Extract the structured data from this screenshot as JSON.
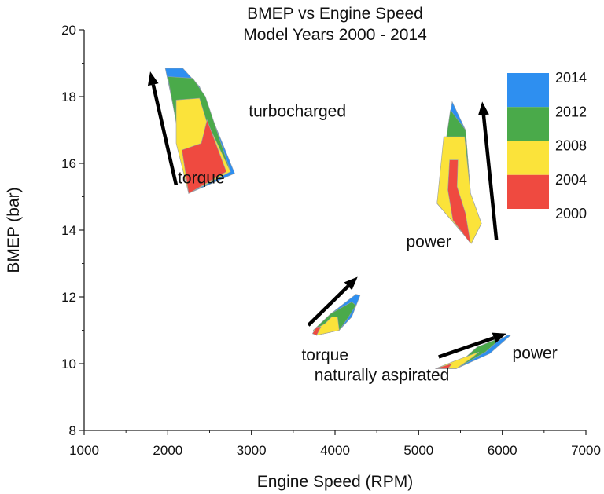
{
  "chart_data": {
    "type": "scatter",
    "title": "BMEP vs Engine Speed",
    "subtitle": "Model Years 2000 - 2014",
    "xlabel": "Engine Speed (RPM)",
    "ylabel": "BMEP (bar)",
    "xlim": [
      1000,
      7000
    ],
    "ylim": [
      8,
      20
    ],
    "xticks": [
      1000,
      2000,
      3000,
      4000,
      5000,
      6000,
      7000
    ],
    "yticks": [
      8,
      10,
      12,
      14,
      16,
      18,
      20
    ],
    "colors": {
      "2014": "#2e8ff0",
      "2012": "#4aaa4a",
      "2008": "#fbe33a",
      "2004": "#ef4a40",
      "2000": "#ef4a40"
    },
    "legend": {
      "placement": "top-right",
      "entries": [
        {
          "label": "2014",
          "color": "#2e8ff0"
        },
        {
          "label": "2012",
          "color": "#4aaa4a"
        },
        {
          "label": "2008",
          "color": "#fbe33a"
        },
        {
          "label": "2004",
          "color": "#ef4a40"
        },
        {
          "label": "2000",
          "color": "#ef4a40"
        }
      ]
    },
    "regions": [
      {
        "name": "turbocharged-torque",
        "layers": [
          {
            "year": "2014",
            "points": [
              [
                1970,
                18.85
              ],
              [
                2180,
                18.85
              ],
              [
                2380,
                18.3
              ],
              [
                2800,
                15.7
              ],
              [
                2250,
                15.1
              ],
              [
                2100,
                17.3
              ]
            ]
          },
          {
            "year": "2012",
            "points": [
              [
                2000,
                18.6
              ],
              [
                2300,
                18.55
              ],
              [
                2450,
                18.0
              ],
              [
                2750,
                15.75
              ],
              [
                2250,
                15.1
              ],
              [
                2080,
                17.5
              ]
            ]
          },
          {
            "year": "2008",
            "points": [
              [
                2100,
                17.9
              ],
              [
                2380,
                17.95
              ],
              [
                2460,
                17.3
              ],
              [
                2750,
                15.75
              ],
              [
                2250,
                15.1
              ],
              [
                2100,
                16.6
              ]
            ]
          },
          {
            "year": "2004",
            "points": [
              [
                2170,
                16.4
              ],
              [
                2400,
                16.6
              ],
              [
                2470,
                17.3
              ],
              [
                2700,
                15.75
              ],
              [
                2250,
                15.1
              ]
            ]
          }
        ]
      },
      {
        "name": "turbocharged-power",
        "layers": [
          {
            "year": "2014",
            "points": [
              [
                5400,
                17.85
              ],
              [
                5560,
                17.0
              ],
              [
                5620,
                15.1
              ],
              [
                5750,
                14.2
              ],
              [
                5630,
                13.6
              ],
              [
                5220,
                14.8
              ]
            ]
          },
          {
            "year": "2012",
            "points": [
              [
                5380,
                17.6
              ],
              [
                5560,
                17.0
              ],
              [
                5620,
                15.1
              ],
              [
                5750,
                14.2
              ],
              [
                5630,
                13.6
              ],
              [
                5220,
                14.8
              ]
            ]
          },
          {
            "year": "2008",
            "points": [
              [
                5300,
                16.8
              ],
              [
                5550,
                16.8
              ],
              [
                5620,
                15.1
              ],
              [
                5750,
                14.2
              ],
              [
                5630,
                13.6
              ],
              [
                5220,
                14.8
              ]
            ]
          },
          {
            "year": "2004",
            "points": [
              [
                5370,
                16.1
              ],
              [
                5470,
                16.1
              ],
              [
                5460,
                15.3
              ],
              [
                5560,
                14.5
              ],
              [
                5620,
                13.6
              ],
              [
                5410,
                14.3
              ],
              [
                5350,
                15.2
              ]
            ]
          }
        ]
      },
      {
        "name": "natural-torque",
        "layers": [
          {
            "year": "2014",
            "points": [
              [
                4250,
                12.08
              ],
              [
                4300,
                12.05
              ],
              [
                4200,
                11.4
              ],
              [
                4050,
                11.0
              ],
              [
                3780,
                10.85
              ],
              [
                3740,
                11.0
              ],
              [
                3950,
                11.5
              ]
            ]
          },
          {
            "year": "2012",
            "points": [
              [
                4200,
                11.85
              ],
              [
                4250,
                11.75
              ],
              [
                4150,
                11.35
              ],
              [
                4050,
                11.0
              ],
              [
                3780,
                10.85
              ],
              [
                3740,
                11.0
              ],
              [
                3950,
                11.5
              ]
            ]
          },
          {
            "year": "2008",
            "points": [
              [
                3960,
                11.4
              ],
              [
                4030,
                11.4
              ],
              [
                4050,
                11.0
              ],
              [
                3780,
                10.85
              ],
              [
                3740,
                11.0
              ],
              [
                3880,
                11.2
              ]
            ]
          },
          {
            "year": "2004",
            "points": [
              [
                3780,
                11.1
              ],
              [
                3830,
                11.1
              ],
              [
                3780,
                10.85
              ],
              [
                3730,
                10.9
              ]
            ]
          }
        ]
      },
      {
        "name": "natural-power",
        "layers": [
          {
            "year": "2014",
            "points": [
              [
                6100,
                10.85
              ],
              [
                6060,
                10.85
              ],
              [
                5700,
                10.3
              ],
              [
                5200,
                9.85
              ],
              [
                5450,
                9.85
              ],
              [
                5850,
                10.3
              ]
            ]
          },
          {
            "year": "2012",
            "points": [
              [
                6000,
                10.8
              ],
              [
                5700,
                10.5
              ],
              [
                5500,
                10.05
              ],
              [
                5200,
                9.85
              ],
              [
                5450,
                9.85
              ],
              [
                5800,
                10.35
              ]
            ]
          },
          {
            "year": "2008",
            "points": [
              [
                5720,
                10.35
              ],
              [
                5450,
                10.1
              ],
              [
                5200,
                9.85
              ],
              [
                5450,
                9.85
              ],
              [
                5650,
                10.2
              ]
            ]
          },
          {
            "year": "2004",
            "points": [
              [
                5400,
                10.0
              ],
              [
                5200,
                9.85
              ],
              [
                5350,
                9.85
              ]
            ]
          }
        ]
      }
    ],
    "arrows": [
      {
        "name": "turbo-torque-arrow",
        "from": [
          2100,
          15.35
        ],
        "to": [
          1790,
          18.75
        ]
      },
      {
        "name": "turbo-power-arrow",
        "from": [
          5930,
          13.7
        ],
        "to": [
          5760,
          17.85
        ]
      },
      {
        "name": "natural-torque-arrow",
        "from": [
          3680,
          11.15
        ],
        "to": [
          4270,
          12.6
        ]
      },
      {
        "name": "natural-power-arrow",
        "from": [
          5240,
          10.2
        ],
        "to": [
          6050,
          10.9
        ]
      }
    ],
    "annotations": [
      {
        "name": "label-turbocharged",
        "text": "turbocharged",
        "x": 3550,
        "y": 17.4,
        "anchor": "middle"
      },
      {
        "name": "label-torque-turbo",
        "text": "torque",
        "x": 2400,
        "y": 15.4,
        "anchor": "middle"
      },
      {
        "name": "label-power-turbo",
        "text": "power",
        "x": 5120,
        "y": 13.5,
        "anchor": "middle"
      },
      {
        "name": "label-torque-natural",
        "text": "torque",
        "x": 3880,
        "y": 10.1,
        "anchor": "middle"
      },
      {
        "name": "label-power-natural",
        "text": "power",
        "x": 6390,
        "y": 10.15,
        "anchor": "middle"
      },
      {
        "name": "label-naturally-aspirated",
        "text": "naturally aspirated",
        "x": 4560,
        "y": 9.5,
        "anchor": "middle"
      }
    ]
  }
}
